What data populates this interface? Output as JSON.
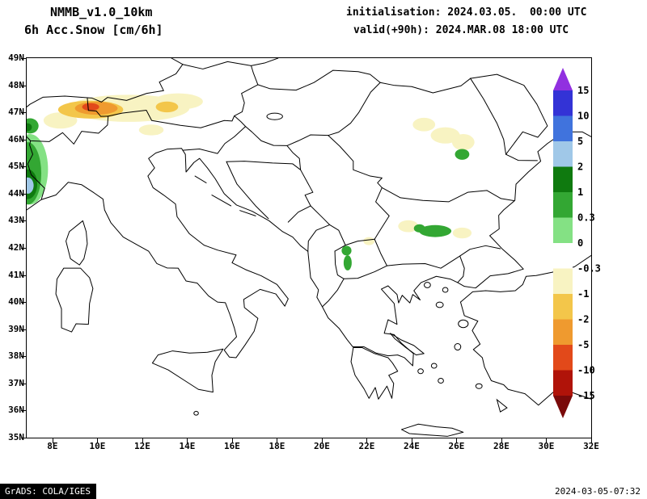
{
  "header": {
    "model": "NMMB_v1.0_10km",
    "field": "6h Acc.Snow [cm/6h]",
    "init": "initialisation: 2024.03.05.  00:00 UTC",
    "valid": "valid(+90h): 2024.MAR.08 18:00 UTC"
  },
  "footer": {
    "credit": "GrADS: COLA/IGES",
    "timestamp": "2024-03-05-07:32"
  },
  "axes": {
    "lat_labels": [
      "49N",
      "48N",
      "47N",
      "46N",
      "45N",
      "44N",
      "43N",
      "42N",
      "41N",
      "40N",
      "39N",
      "38N",
      "37N",
      "36N",
      "35N"
    ],
    "lon_labels": [
      "8E",
      "10E",
      "12E",
      "14E",
      "16E",
      "18E",
      "20E",
      "22E",
      "24E",
      "26E",
      "28E",
      "30E",
      "32E"
    ],
    "lat_max": 49,
    "lat_min": 35,
    "lon_min": 8,
    "lon_step": 2
  },
  "colorbar": {
    "tick_labels": [
      "15",
      "10",
      "5",
      "2",
      "1",
      "0.3",
      "0",
      "-0.3",
      "-1",
      "-2",
      "-5",
      "-10",
      "-15"
    ],
    "segment_colors": [
      "#3333d6",
      "#4073dd",
      "#a0c8e8",
      "#0f7a0f",
      "#33a733",
      "#84e184",
      "#ffffff",
      "#f8f3c2",
      "#f3c64a",
      "#ef9a2f",
      "#e2491a",
      "#b01309"
    ],
    "arrow_top_color": "#9130e0",
    "arrow_bottom_color": "#7a0a0a"
  },
  "map": {
    "palette": {
      "paleYellow": "#f8f3c2",
      "gold": "#f3c64a",
      "orange": "#ef9a2f",
      "red": "#e2491a",
      "lightGreen": "#84e184",
      "green": "#33a733",
      "darkGreen": "#0f7a0f",
      "lightBlue": "#a0c8e8"
    },
    "patches": [
      {
        "lon": 11.4,
        "lat": 47.15,
        "rx": 2.7,
        "ry": 0.5,
        "color": "paleYellow"
      },
      {
        "lon": 13.6,
        "lat": 47.4,
        "rx": 1.1,
        "ry": 0.3,
        "color": "paleYellow"
      },
      {
        "lon": 8.35,
        "lat": 46.7,
        "rx": 0.75,
        "ry": 0.3,
        "color": "paleYellow"
      },
      {
        "lon": 12.4,
        "lat": 46.35,
        "rx": 0.55,
        "ry": 0.2,
        "color": "paleYellow"
      },
      {
        "lon": 9.7,
        "lat": 47.1,
        "rx": 1.45,
        "ry": 0.33,
        "color": "gold"
      },
      {
        "lon": 13.1,
        "lat": 47.2,
        "rx": 0.5,
        "ry": 0.2,
        "color": "gold"
      },
      {
        "lon": 9.95,
        "lat": 47.15,
        "rx": 0.95,
        "ry": 0.24,
        "color": "orange"
      },
      {
        "lon": 9.7,
        "lat": 47.2,
        "rx": 0.38,
        "ry": 0.14,
        "color": "red"
      },
      {
        "lon": 7.0,
        "lat": 44.9,
        "rx": 0.8,
        "ry": 1.3,
        "color": "lightGreen"
      },
      {
        "lon": 6.9,
        "lat": 44.75,
        "rx": 0.6,
        "ry": 1.15,
        "color": "green"
      },
      {
        "lon": 6.9,
        "lat": 44.35,
        "rx": 0.42,
        "ry": 0.55,
        "color": "darkGreen"
      },
      {
        "lon": 6.9,
        "lat": 44.3,
        "rx": 0.26,
        "ry": 0.3,
        "color": "lightBlue"
      },
      {
        "lon": 7.0,
        "lat": 46.5,
        "rx": 0.38,
        "ry": 0.28,
        "color": "green"
      },
      {
        "lon": 6.88,
        "lat": 46.45,
        "rx": 0.2,
        "ry": 0.15,
        "color": "darkGreen"
      },
      {
        "lon": 25.5,
        "lat": 46.15,
        "rx": 0.65,
        "ry": 0.3,
        "color": "paleYellow"
      },
      {
        "lon": 24.55,
        "lat": 46.55,
        "rx": 0.5,
        "ry": 0.25,
        "color": "paleYellow"
      },
      {
        "lon": 26.3,
        "lat": 45.9,
        "rx": 0.5,
        "ry": 0.3,
        "color": "paleYellow"
      },
      {
        "lon": 26.25,
        "lat": 45.45,
        "rx": 0.32,
        "ry": 0.2,
        "color": "green"
      },
      {
        "lon": 23.85,
        "lat": 42.8,
        "rx": 0.45,
        "ry": 0.22,
        "color": "paleYellow"
      },
      {
        "lon": 26.25,
        "lat": 42.55,
        "rx": 0.42,
        "ry": 0.2,
        "color": "paleYellow"
      },
      {
        "lon": 25.05,
        "lat": 42.62,
        "rx": 0.72,
        "ry": 0.22,
        "color": "green"
      },
      {
        "lon": 24.35,
        "lat": 42.72,
        "rx": 0.25,
        "ry": 0.15,
        "color": "green"
      },
      {
        "lon": 21.1,
        "lat": 41.9,
        "rx": 0.22,
        "ry": 0.18,
        "color": "green"
      },
      {
        "lon": 21.15,
        "lat": 41.45,
        "rx": 0.18,
        "ry": 0.28,
        "color": "green"
      },
      {
        "lon": 22.1,
        "lat": 42.25,
        "rx": 0.25,
        "ry": 0.15,
        "color": "paleYellow"
      }
    ]
  }
}
